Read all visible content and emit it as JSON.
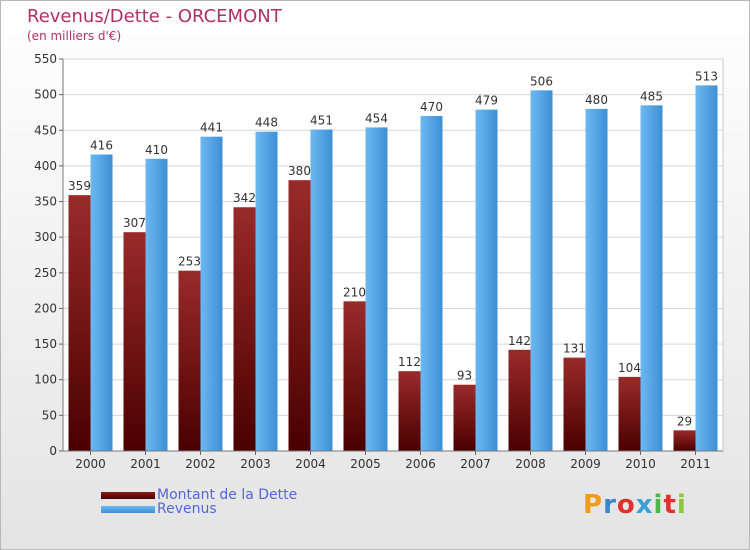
{
  "chart_data": {
    "type": "bar",
    "title": "Revenus/Dette - ORCEMONT",
    "subtitle": "(en milliers d'€)",
    "categories": [
      "2000",
      "2001",
      "2002",
      "2003",
      "2004",
      "2005",
      "2006",
      "2007",
      "2008",
      "2009",
      "2010",
      "2011"
    ],
    "series": [
      {
        "name": "Montant de la Dette",
        "values": [
          359,
          307,
          253,
          342,
          380,
          210,
          112,
          93,
          142,
          131,
          104,
          29
        ],
        "color": "#7a1010"
      },
      {
        "name": "Revenus",
        "values": [
          416,
          410,
          441,
          448,
          451,
          454,
          470,
          479,
          506,
          480,
          485,
          513
        ],
        "color": "#4a9fe0"
      }
    ],
    "ylim": [
      0,
      550
    ],
    "yticks": [
      0,
      50,
      100,
      150,
      200,
      250,
      300,
      350,
      400,
      450,
      500,
      550
    ],
    "grid": true,
    "legend_position": "bottom-left"
  },
  "logo": {
    "text": "Proxiti",
    "letter_colors": [
      "#f29a1a",
      "#3a86c8",
      "#e0322a",
      "#3aa0d8",
      "#4cb848",
      "#e0322a",
      "#8cc63e"
    ]
  }
}
